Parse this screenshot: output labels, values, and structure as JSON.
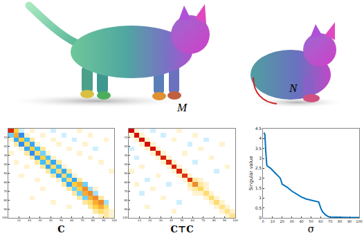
{
  "shapes": {
    "source_label": "M",
    "target_label": "N"
  },
  "chart_data": [
    {
      "type": "heatmap",
      "x_label": "C",
      "x": [
        2.5,
        7.5,
        12.5,
        17.5,
        22.5,
        27.5,
        32.5,
        37.5,
        42.5,
        47.5,
        52.5,
        57.5,
        62.5,
        67.5,
        72.5,
        77.5,
        82.5,
        87.5,
        92.5,
        97.5
      ],
      "y": [
        2.5,
        7.5,
        12.5,
        17.5,
        22.5,
        27.5,
        32.5,
        37.5,
        42.5,
        47.5,
        52.5,
        57.5,
        62.5,
        67.5,
        72.5,
        77.5,
        82.5,
        87.5,
        92.5,
        97.5
      ],
      "xlim": [
        0,
        100
      ],
      "ylim": [
        100,
        0
      ],
      "xticks": [
        10,
        20,
        30,
        40,
        50,
        60,
        70,
        80,
        90,
        100
      ],
      "yticks": [
        10,
        20,
        30,
        40,
        50,
        60,
        70,
        80,
        90,
        100
      ],
      "color_range": [
        -1,
        1
      ],
      "cells": [
        [
          0.9,
          0.4,
          -0.1,
          0,
          0.1,
          0,
          0,
          0,
          -0.1,
          0,
          0,
          0,
          0,
          0.1,
          0,
          0,
          0,
          0,
          0,
          0
        ],
        [
          -0.3,
          0.5,
          -0.6,
          0.1,
          0,
          0,
          0.1,
          0,
          0,
          0,
          -0.1,
          0,
          0,
          0,
          0,
          0.1,
          0,
          0,
          0,
          0
        ],
        [
          0.1,
          -0.5,
          0.4,
          -0.4,
          0.2,
          0,
          0,
          0,
          0.1,
          0,
          0,
          0,
          -0.1,
          0,
          0,
          0,
          0,
          0,
          0.1,
          0
        ],
        [
          0,
          0.2,
          -0.6,
          0.3,
          -0.5,
          0.1,
          0,
          0,
          0,
          0.1,
          0,
          0,
          0,
          0,
          0.1,
          0,
          0,
          0,
          0,
          0
        ],
        [
          0,
          0,
          0.1,
          -0.5,
          0.4,
          -0.4,
          0.2,
          0,
          0,
          0,
          0,
          0.1,
          0,
          0,
          0,
          0,
          -0.1,
          0,
          0,
          0
        ],
        [
          0.1,
          0,
          0,
          0.2,
          -0.6,
          0.3,
          -0.3,
          0.1,
          0,
          0,
          0,
          0,
          0,
          0.1,
          0,
          0,
          0,
          0,
          0,
          0
        ],
        [
          0,
          0,
          0,
          0,
          0.2,
          -0.5,
          0.4,
          -0.4,
          0.1,
          0,
          0,
          0,
          0,
          0,
          0,
          0.1,
          0,
          0,
          0,
          0
        ],
        [
          0,
          0.1,
          0,
          0,
          0,
          0.2,
          -0.4,
          0.3,
          -0.5,
          0.2,
          0,
          0,
          0,
          0,
          0,
          0,
          0,
          0.1,
          0,
          0
        ],
        [
          0,
          0,
          0,
          0.1,
          0,
          0,
          0.2,
          -0.5,
          0.3,
          -0.4,
          0.1,
          0,
          0,
          0,
          0,
          0,
          0,
          0,
          0,
          0
        ],
        [
          0,
          0,
          0,
          0,
          0,
          0,
          0,
          0.2,
          -0.4,
          0.3,
          -0.5,
          0.2,
          0,
          0,
          0,
          0,
          0,
          0,
          0,
          0.1
        ],
        [
          0,
          0,
          0.1,
          0,
          0,
          0,
          0,
          0,
          0.2,
          -0.5,
          0.3,
          -0.4,
          0.1,
          0,
          0,
          0,
          0,
          0,
          0,
          0
        ],
        [
          0,
          0,
          0,
          0,
          0,
          0.1,
          0,
          0,
          0,
          0.1,
          -0.4,
          0.3,
          -0.5,
          0.2,
          0,
          0,
          0,
          0,
          0,
          0
        ],
        [
          0,
          0,
          0,
          0,
          0,
          0,
          0,
          0,
          0,
          0,
          0.2,
          -0.5,
          0.4,
          0.5,
          -0.3,
          0,
          0,
          0,
          0,
          0
        ],
        [
          0,
          0,
          0,
          0,
          0,
          0,
          0.1,
          0,
          0,
          0,
          0,
          0.2,
          -0.3,
          0.4,
          0.6,
          -0.2,
          0.1,
          0,
          0,
          0
        ],
        [
          0,
          0,
          0,
          0,
          0,
          0,
          0,
          0,
          0,
          0,
          0,
          0,
          0.2,
          -0.3,
          0.5,
          0.6,
          -0.2,
          0,
          0,
          0
        ],
        [
          0,
          0,
          0,
          0,
          0.1,
          0,
          0,
          0,
          0,
          0,
          0,
          0,
          0,
          0.2,
          -0.3,
          0.5,
          0.6,
          0.2,
          0,
          0
        ],
        [
          0,
          0,
          0,
          0,
          0,
          0,
          0,
          0,
          0.1,
          0,
          0,
          0,
          0,
          0,
          0.2,
          0.3,
          0.5,
          0.6,
          -0.2,
          0
        ],
        [
          0,
          0,
          0,
          0,
          0,
          0,
          0,
          0,
          0,
          0,
          0,
          0.1,
          0,
          0,
          0,
          0.2,
          0.4,
          0.5,
          0.3,
          0
        ],
        [
          0,
          0,
          0,
          0,
          0,
          0,
          0,
          0,
          0,
          0,
          0,
          0,
          0,
          0,
          0,
          0,
          0.2,
          0.3,
          0.2,
          0.1
        ],
        [
          0,
          0,
          0,
          0,
          0,
          0,
          0,
          0,
          0,
          0,
          0,
          0,
          0,
          0,
          0,
          0,
          0,
          0.1,
          0.2,
          0.1
        ]
      ]
    },
    {
      "type": "heatmap",
      "x_label": "C⊤C",
      "x": [
        2.5,
        7.5,
        12.5,
        17.5,
        22.5,
        27.5,
        32.5,
        37.5,
        42.5,
        47.5,
        52.5,
        57.5,
        62.5,
        67.5,
        72.5,
        77.5,
        82.5,
        87.5,
        92.5,
        97.5
      ],
      "y": [
        2.5,
        7.5,
        12.5,
        17.5,
        22.5,
        27.5,
        32.5,
        37.5,
        42.5,
        47.5,
        52.5,
        57.5,
        62.5,
        67.5,
        72.5,
        77.5,
        82.5,
        87.5,
        92.5,
        97.5
      ],
      "xlim": [
        0,
        100
      ],
      "ylim": [
        100,
        0
      ],
      "xticks": [
        10,
        20,
        30,
        40,
        50,
        60,
        70,
        80,
        90,
        100
      ],
      "yticks": [
        10,
        20,
        30,
        40,
        50,
        60,
        70,
        80,
        90,
        100
      ],
      "color_range": [
        -1,
        1
      ],
      "cells": [
        [
          1,
          0.1,
          0,
          0,
          -0.1,
          0,
          0,
          0,
          0,
          0.1,
          0,
          0,
          0,
          0,
          0,
          0,
          0,
          0,
          0,
          0
        ],
        [
          0.1,
          0.95,
          0.1,
          0,
          0,
          0,
          -0.1,
          0,
          0,
          0,
          0,
          0,
          0.1,
          0,
          0,
          0,
          0,
          0,
          0,
          0
        ],
        [
          0,
          0.1,
          0.95,
          0.1,
          0,
          0,
          0,
          0,
          0.1,
          0,
          0,
          0,
          0,
          0,
          -0.1,
          0,
          0,
          0,
          0,
          0
        ],
        [
          0,
          0,
          0.1,
          0.95,
          0.1,
          0,
          0,
          0,
          0,
          0,
          0,
          -0.1,
          0,
          0,
          0,
          0,
          0,
          0.1,
          0,
          0
        ],
        [
          -0.1,
          0,
          0,
          0.1,
          0.95,
          0.1,
          0,
          0,
          0,
          0,
          0,
          0,
          0,
          0.1,
          0,
          0,
          0,
          0,
          0,
          0
        ],
        [
          0,
          0,
          0,
          0,
          0.1,
          0.9,
          0.1,
          0,
          0,
          0,
          0.1,
          0,
          0,
          0,
          0,
          0,
          0,
          0,
          0,
          0
        ],
        [
          0,
          -0.1,
          0,
          0,
          0,
          0.1,
          0.9,
          0.1,
          0,
          0,
          0,
          0,
          0,
          0,
          0,
          0.1,
          0,
          0,
          0,
          0
        ],
        [
          0,
          0,
          0,
          0,
          0,
          0,
          0.1,
          0.9,
          0.1,
          0,
          0,
          0,
          -0.1,
          0,
          0,
          0,
          0,
          0,
          0,
          0
        ],
        [
          0,
          0,
          0.1,
          0,
          0,
          0,
          0,
          0.1,
          0.9,
          0.1,
          0,
          0,
          0,
          0,
          0,
          0,
          0,
          0,
          0.1,
          0
        ],
        [
          0.1,
          0,
          0,
          0,
          0,
          0,
          0,
          0,
          0.1,
          0.9,
          0.1,
          0,
          0,
          0,
          0,
          0,
          -0.1,
          0,
          0,
          0
        ],
        [
          0,
          0,
          0,
          0,
          0,
          0.1,
          0,
          0,
          0,
          0.1,
          0.85,
          0.1,
          0,
          0,
          0,
          0,
          0,
          0,
          0,
          0
        ],
        [
          0,
          0,
          0,
          -0.1,
          0,
          0,
          0,
          0,
          0,
          0,
          0.1,
          0.85,
          0.2,
          0.1,
          0,
          0,
          0,
          0,
          0,
          0
        ],
        [
          0,
          0.1,
          0,
          0,
          0,
          0,
          0,
          -0.1,
          0,
          0,
          0,
          0.2,
          0.6,
          0.2,
          0.1,
          0,
          0,
          0,
          0,
          0
        ],
        [
          0,
          0,
          0,
          0,
          0.1,
          0,
          0,
          0,
          0,
          0,
          0,
          0.1,
          0.2,
          0.35,
          0.1,
          0,
          0,
          0,
          0,
          0
        ],
        [
          0,
          0,
          -0.1,
          0,
          0,
          0,
          0,
          0,
          0,
          0,
          0,
          0,
          0.1,
          0.1,
          0.3,
          0.1,
          0,
          0,
          0,
          0
        ],
        [
          0,
          0,
          0,
          0,
          0,
          0,
          0.1,
          0,
          0,
          0,
          0,
          0,
          0,
          0,
          0.1,
          0.3,
          0.1,
          0,
          0,
          0
        ],
        [
          0,
          0,
          0,
          0,
          0,
          0,
          0,
          0,
          0,
          -0.1,
          0,
          0,
          0,
          0,
          0,
          0.1,
          0.3,
          0.1,
          0,
          0
        ],
        [
          0,
          0,
          0,
          0.1,
          0,
          0,
          0,
          0,
          0,
          0,
          0,
          0,
          0,
          0,
          0,
          0,
          0.1,
          0.25,
          0.1,
          0
        ],
        [
          0,
          0,
          0,
          0,
          0,
          0,
          0,
          0,
          0.1,
          0,
          0,
          0,
          0,
          0,
          0,
          0,
          0,
          0.1,
          0.25,
          0.1
        ],
        [
          0,
          0,
          0,
          0,
          0,
          0,
          0,
          0,
          0,
          0,
          0,
          0,
          0,
          0,
          0,
          0,
          0,
          0,
          0.1,
          0.25
        ]
      ]
    },
    {
      "type": "line",
      "x_label": "σ",
      "y_label": "Singular value",
      "color": "#0072bd",
      "x": [
        1,
        2,
        3,
        4,
        5,
        8,
        10,
        15,
        18,
        20,
        25,
        30,
        35,
        40,
        45,
        50,
        55,
        58,
        60,
        62,
        65,
        68,
        70,
        75,
        80,
        90,
        100
      ],
      "values": [
        4.3,
        4.2,
        3.3,
        2.65,
        2.6,
        2.5,
        2.4,
        2.15,
        2.0,
        1.7,
        1.55,
        1.35,
        1.2,
        1.05,
        0.95,
        0.9,
        0.85,
        0.8,
        0.5,
        0.3,
        0.15,
        0.06,
        0.04,
        0.03,
        0.02,
        0.02,
        0.02
      ],
      "xlim": [
        0,
        100
      ],
      "ylim": [
        0,
        4.5
      ],
      "xticks": [
        0,
        10,
        20,
        30,
        40,
        50,
        60,
        70,
        80,
        90,
        100
      ],
      "yticks": [
        0,
        0.5,
        1,
        1.5,
        2,
        2.5,
        3,
        3.5,
        4,
        4.5
      ],
      "grid": false
    }
  ]
}
